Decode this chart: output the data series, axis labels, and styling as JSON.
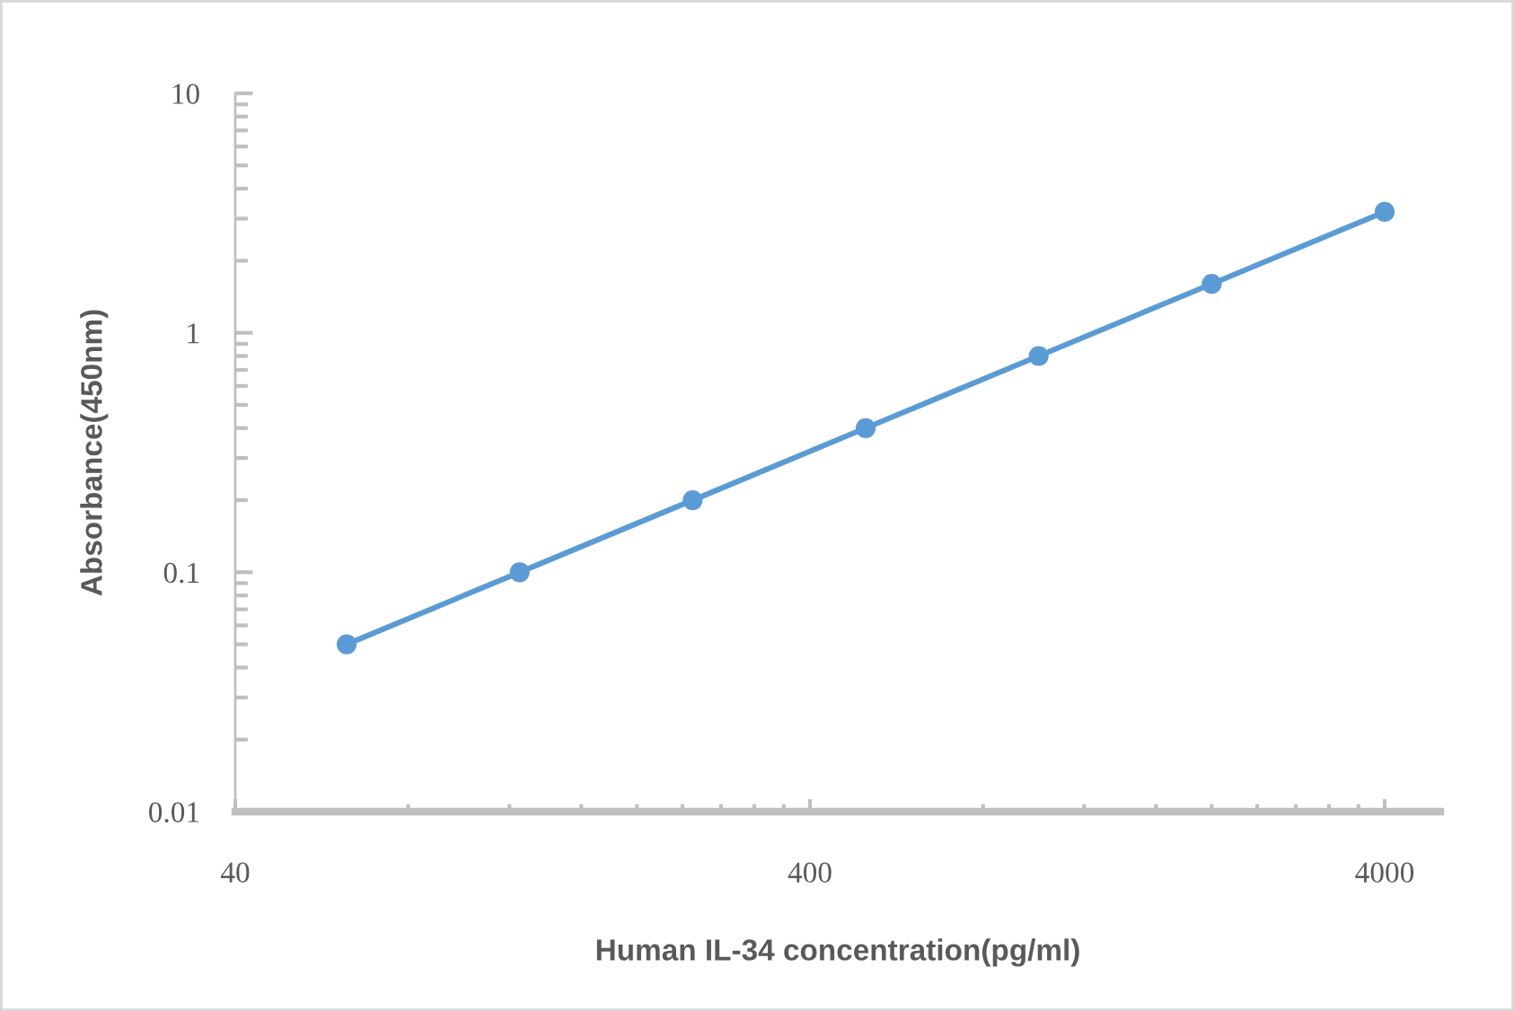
{
  "chart_data": {
    "type": "line",
    "xlabel": "Human IL-34 concentration(pg/ml)",
    "ylabel": "Absorbance(450nm)",
    "x": [
      62.5,
      125,
      250,
      500,
      1000,
      2000,
      4000
    ],
    "series": [
      {
        "color": "#5b9bd5",
        "values": [
          0.05,
          0.1,
          0.2,
          0.4,
          0.8,
          1.6,
          3.2
        ]
      }
    ],
    "log": "xy",
    "xlim": [
      40,
      5000
    ],
    "xticks": [
      40,
      400,
      4000
    ],
    "ylim": [
      0.01,
      10
    ],
    "yticks": [
      0.01,
      0.1,
      1,
      10
    ],
    "marker": "circle",
    "line_style": "solid",
    "grid": false
  }
}
